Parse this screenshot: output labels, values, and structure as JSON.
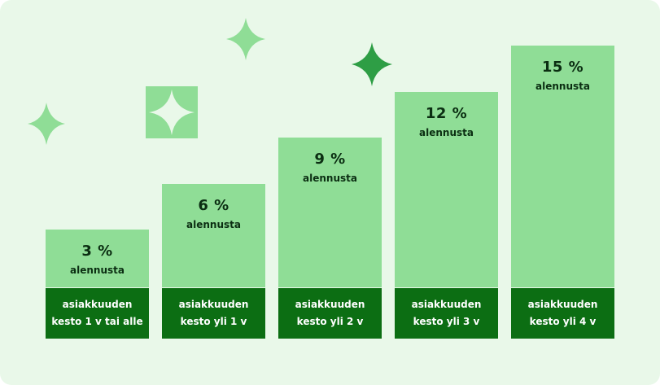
{
  "chart_data": {
    "type": "bar",
    "categories": [
      {
        "line1": "asiakkuuden",
        "line2": "kesto 1 v tai alle"
      },
      {
        "line1": "asiakkuuden",
        "line2": "kesto yli 1 v"
      },
      {
        "line1": "asiakkuuden",
        "line2": "kesto yli 2 v"
      },
      {
        "line1": "asiakkuuden",
        "line2": "kesto yli 3 v"
      },
      {
        "line1": "asiakkuuden",
        "line2": "kesto yli 4 v"
      }
    ],
    "values": [
      3,
      6,
      9,
      12,
      15
    ],
    "value_labels": [
      "3 %",
      "6 %",
      "9 %",
      "12 %",
      "15 %"
    ],
    "value_sublabel": "alennusta",
    "ylim": [
      0,
      15
    ],
    "grid": false,
    "colors": {
      "bar": "#8fdd96",
      "label_bg": "#0c6e13",
      "background": "#e9f8e9",
      "sparkle_light": "#8fdd96",
      "sparkle_dark": "#2e9e45"
    }
  },
  "decorations": [
    "sparkle-icon",
    "sparkle-icon",
    "sparkle-icon",
    "sparkle-tile-icon"
  ]
}
